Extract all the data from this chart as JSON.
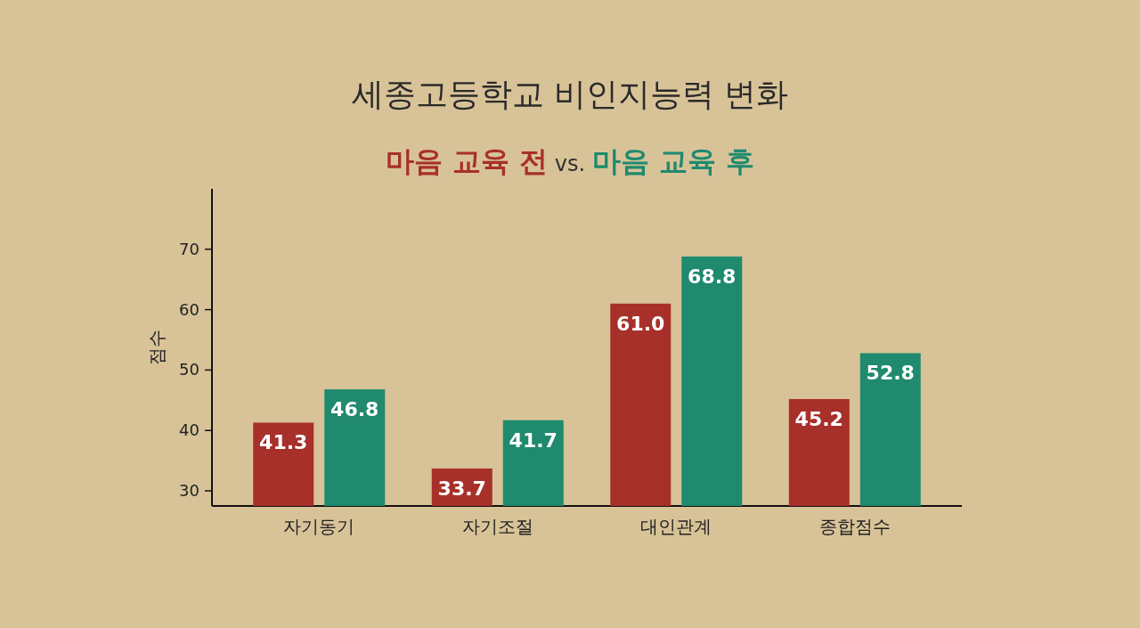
{
  "chart_data": {
    "type": "bar",
    "title": "세종고등학교 비인지능력 변화",
    "ylabel": "점수",
    "categories": [
      "자기동기",
      "자기조절",
      "대인관계",
      "종합점수"
    ],
    "series": [
      {
        "name": "마음 교육 전",
        "color": "#a8302a",
        "values": [
          41.3,
          33.7,
          61.0,
          45.2
        ],
        "value_labels": [
          "41.3",
          "33.7",
          "61.0",
          "45.2"
        ]
      },
      {
        "name": "마음 교육 후",
        "color": "#1f8a6e",
        "values": [
          46.8,
          41.7,
          68.8,
          52.8
        ],
        "value_labels": [
          "46.8",
          "41.7",
          "68.8",
          "52.8"
        ]
      }
    ],
    "annotations": [
      "vs."
    ],
    "ylim": [
      27.5,
      80
    ],
    "yticks": [
      30,
      40,
      50,
      60,
      70
    ],
    "legend": "top",
    "grid": false
  }
}
